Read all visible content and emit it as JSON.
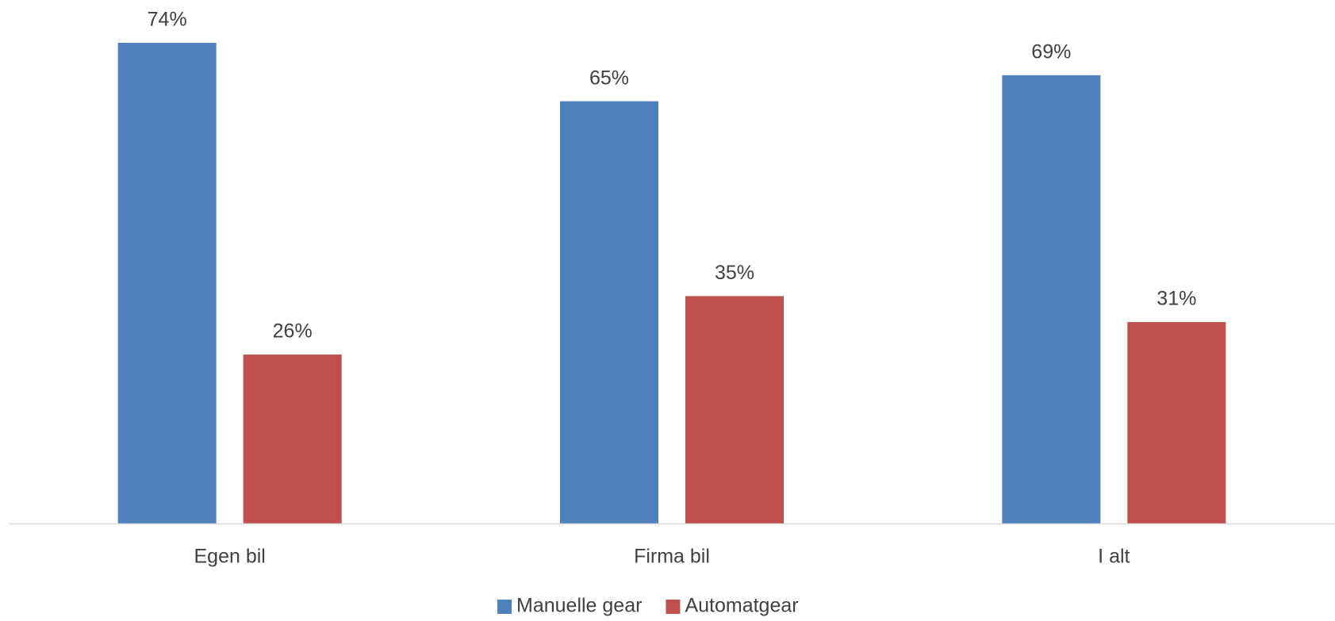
{
  "chart_data": {
    "type": "bar",
    "categories": [
      "Egen bil",
      "Firma bil",
      "I alt"
    ],
    "series": [
      {
        "name": "Manuelle gear",
        "color": "#4f81bd",
        "values": [
          74,
          65,
          69
        ],
        "value_labels": [
          "74%",
          "65%",
          "69%"
        ]
      },
      {
        "name": "Automatgear",
        "color": "#c0504d",
        "values": [
          26,
          35,
          31
        ],
        "value_labels": [
          "26%",
          "35%",
          "31%"
        ]
      }
    ],
    "legend": "bottom"
  }
}
